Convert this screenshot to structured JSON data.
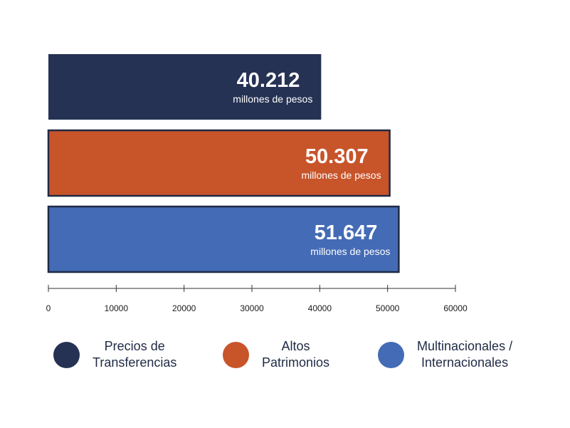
{
  "chart_data": {
    "type": "bar",
    "orientation": "horizontal",
    "categories": [
      "Precios de Transferencias",
      "Altos Patrimonios",
      "Multinacionales / Internacionales"
    ],
    "values": [
      40212,
      50307,
      51647
    ],
    "value_labels": [
      "40.212",
      "50.307",
      "51.647"
    ],
    "unit_label": "millones de pesos",
    "colors": [
      "#253253",
      "#c8542a",
      "#446bb5"
    ],
    "outline_color": "#1f2a44",
    "xlim": [
      0,
      60000
    ],
    "xticks": [
      0,
      10000,
      20000,
      30000,
      40000,
      50000,
      60000
    ],
    "xtick_labels": [
      "0",
      "10000",
      "20000",
      "30000",
      "40000",
      "50000",
      "60000"
    ],
    "grid": false,
    "legend_position": "bottom",
    "title": "",
    "xlabel": "",
    "ylabel": ""
  },
  "legend": [
    {
      "line1": "Precios de",
      "line2": "Transferencias",
      "color": "#253253"
    },
    {
      "line1": "Altos",
      "line2": "Patrimonios",
      "color": "#c8542a"
    },
    {
      "line1": "Multinacionales /",
      "line2": "Internacionales",
      "color": "#446bb5"
    }
  ]
}
